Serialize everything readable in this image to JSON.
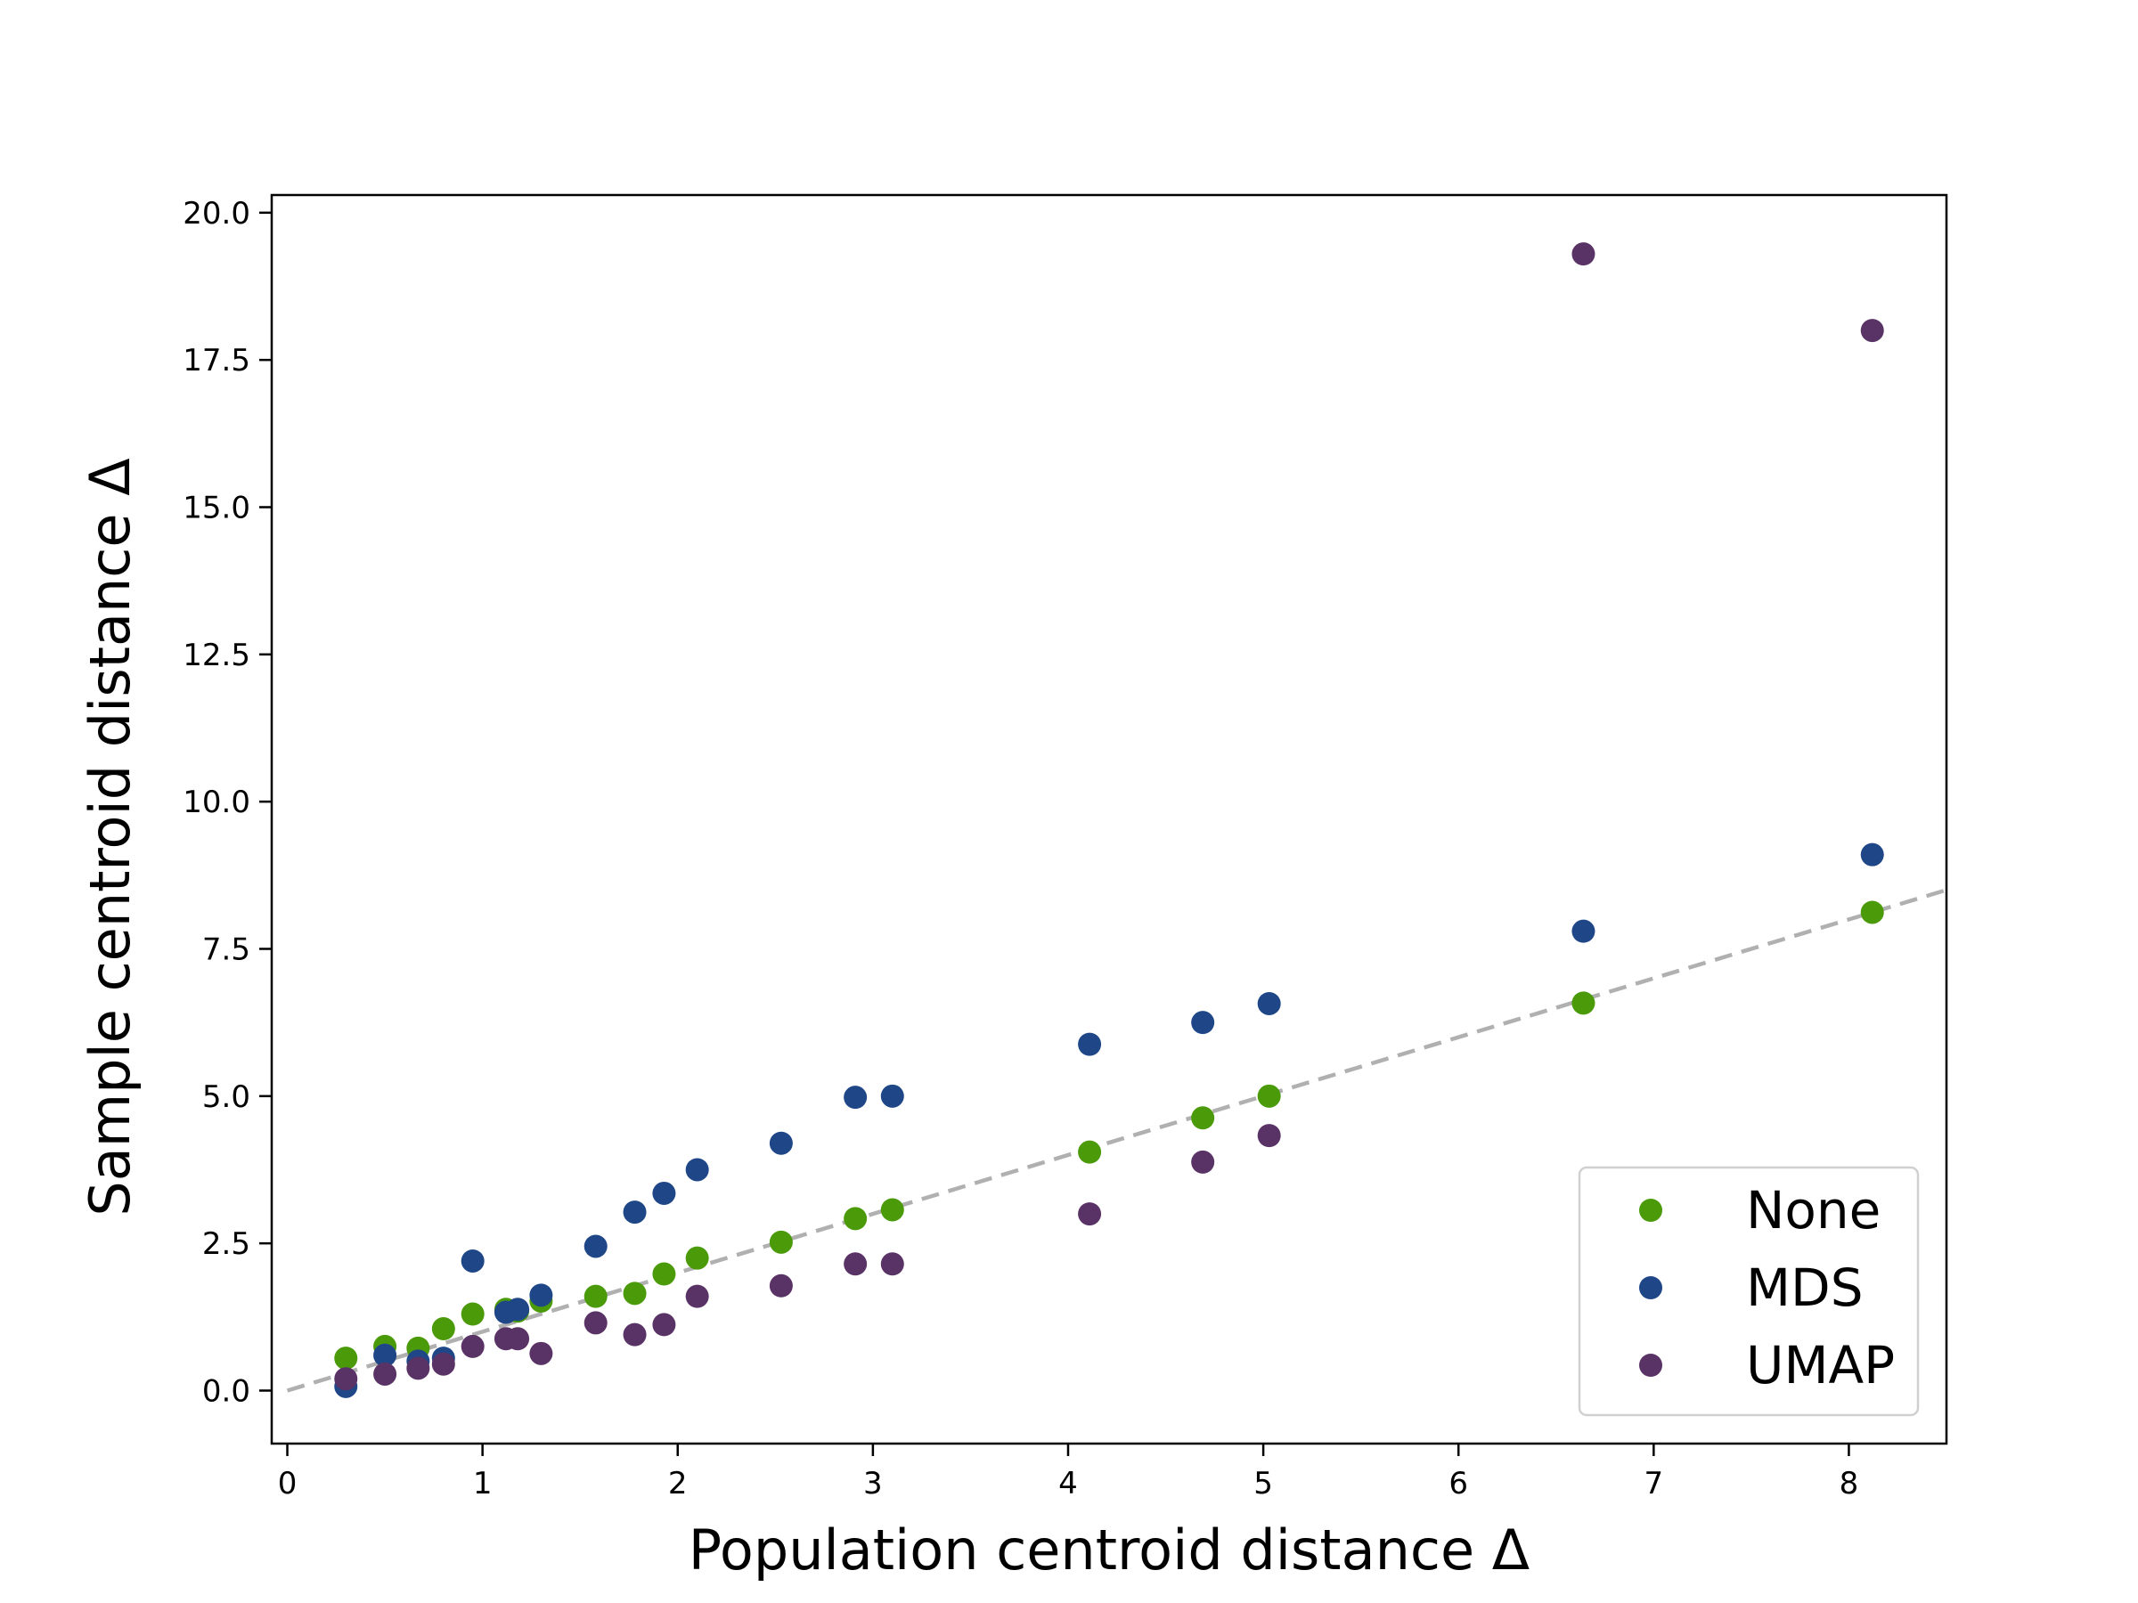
{
  "chart_data": {
    "type": "scatter",
    "title": "",
    "xlabel": "Population centroid distance Δ",
    "ylabel": "Sample centroid distance Δ",
    "xlim": [
      -0.08,
      8.5
    ],
    "ylim": [
      -0.9,
      20.3
    ],
    "xticks": [
      0,
      1,
      2,
      3,
      4,
      5,
      6,
      7,
      8
    ],
    "xtick_labels": [
      "0",
      "1",
      "2",
      "3",
      "4",
      "5",
      "6",
      "7",
      "8"
    ],
    "yticks": [
      0,
      2.5,
      5,
      7.5,
      10,
      12.5,
      15,
      17.5,
      20
    ],
    "ytick_labels": [
      "0.0",
      "2.5",
      "5.0",
      "7.5",
      "10.0",
      "12.5",
      "15.0",
      "17.5",
      "20.0"
    ],
    "grid": false,
    "legend_position": "lower-right",
    "reference_line": {
      "style": "dashed",
      "color": "#b0b0b0",
      "x": [
        0,
        8.5
      ],
      "y": [
        0,
        8.5
      ]
    },
    "series": [
      {
        "name": "None",
        "color": "#4a9a0a",
        "points": [
          [
            0.3,
            0.55
          ],
          [
            0.5,
            0.75
          ],
          [
            0.67,
            0.72
          ],
          [
            0.8,
            1.05
          ],
          [
            0.95,
            1.3
          ],
          [
            1.12,
            1.38
          ],
          [
            1.18,
            1.35
          ],
          [
            1.3,
            1.52
          ],
          [
            1.58,
            1.6
          ],
          [
            1.78,
            1.65
          ],
          [
            1.93,
            1.98
          ],
          [
            2.1,
            2.25
          ],
          [
            2.53,
            2.52
          ],
          [
            2.91,
            2.92
          ],
          [
            3.1,
            3.07
          ],
          [
            4.11,
            4.05
          ],
          [
            4.69,
            4.63
          ],
          [
            5.03,
            5.0
          ],
          [
            6.64,
            6.58
          ],
          [
            8.12,
            8.12
          ]
        ]
      },
      {
        "name": "MDS",
        "color": "#1f4788",
        "points": [
          [
            0.3,
            0.07
          ],
          [
            0.5,
            0.6
          ],
          [
            0.67,
            0.5
          ],
          [
            0.8,
            0.55
          ],
          [
            0.95,
            2.2
          ],
          [
            1.12,
            1.33
          ],
          [
            1.18,
            1.38
          ],
          [
            1.3,
            1.62
          ],
          [
            1.58,
            2.45
          ],
          [
            1.78,
            3.03
          ],
          [
            1.93,
            3.35
          ],
          [
            2.1,
            3.75
          ],
          [
            2.53,
            4.2
          ],
          [
            2.91,
            4.98
          ],
          [
            3.1,
            5.0
          ],
          [
            4.11,
            5.88
          ],
          [
            4.69,
            6.25
          ],
          [
            5.03,
            6.57
          ],
          [
            6.64,
            7.8
          ],
          [
            8.12,
            9.1
          ]
        ]
      },
      {
        "name": "UMAP",
        "color": "#5a3366",
        "points": [
          [
            0.3,
            0.2
          ],
          [
            0.5,
            0.28
          ],
          [
            0.67,
            0.38
          ],
          [
            0.8,
            0.45
          ],
          [
            0.95,
            0.75
          ],
          [
            1.12,
            0.88
          ],
          [
            1.18,
            0.88
          ],
          [
            1.3,
            0.63
          ],
          [
            1.58,
            1.15
          ],
          [
            1.78,
            0.95
          ],
          [
            1.93,
            1.12
          ],
          [
            2.1,
            1.6
          ],
          [
            2.53,
            1.78
          ],
          [
            2.91,
            2.15
          ],
          [
            3.1,
            2.15
          ],
          [
            4.11,
            3.0
          ],
          [
            4.69,
            3.88
          ],
          [
            5.03,
            4.33
          ],
          [
            6.64,
            19.3
          ],
          [
            8.12,
            18.0
          ]
        ]
      }
    ]
  }
}
